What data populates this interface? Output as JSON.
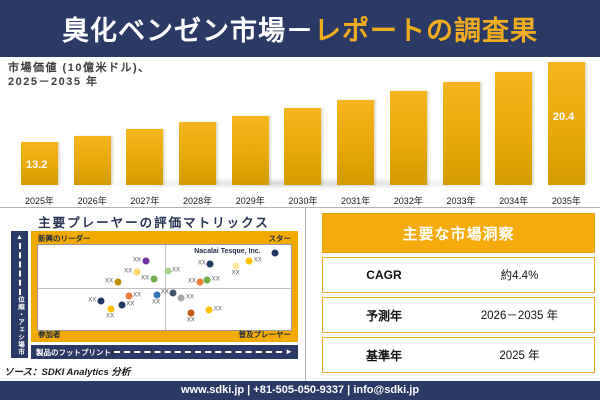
{
  "header": {
    "title_part1": "臭化ベンゼン市場－",
    "title_part2": "レポートの調査果"
  },
  "chart_data": [
    {
      "type": "bar",
      "title": "市場価値 (10億米ドル)、2025－2035 年",
      "title_lines": [
        "市場価値 (10億米ドル)、",
        "2025－2035 年"
      ],
      "categories": [
        "2025年",
        "2026年",
        "2027年",
        "2028年",
        "2029年",
        "2030年",
        "2031年",
        "2032年",
        "2033年",
        "2034年",
        "2035年"
      ],
      "values": [
        13.2,
        13.8,
        14.4,
        15.0,
        15.6,
        16.3,
        17.0,
        17.8,
        18.6,
        19.5,
        20.4
      ],
      "labeled_points": {
        "2025年": "13.2",
        "2035年": "20.4"
      },
      "unit": "10億米ドル",
      "ylim": [
        9.4,
        21
      ],
      "bar_color": "#E7A90A",
      "legend": "none",
      "grid": "off"
    },
    {
      "type": "scatter",
      "title": "主要プレーヤーの評価マトリックス",
      "xlabel": "製品のフットプリント",
      "ylabel": "市場シェア・順位",
      "quadrants": {
        "top_left": "新興のリーダー",
        "top_right": "スター",
        "bottom_left": "参加者",
        "bottom_right": "普及プレーヤー"
      },
      "annotation": "Nacalai Tesque, Inc.",
      "point_label": "XX",
      "points": [
        {
          "x": 42.5,
          "y": 19.0,
          "color": "#7030A0",
          "side": "left"
        },
        {
          "x": 39.0,
          "y": 32.0,
          "color": "#FFD966",
          "side": "left"
        },
        {
          "x": 45.7,
          "y": 40.0,
          "color": "#70AD47",
          "side": "left"
        },
        {
          "x": 31.5,
          "y": 43.5,
          "color": "#BF8F00",
          "side": "left"
        },
        {
          "x": 51.2,
          "y": 30.6,
          "color": "#A9D18E",
          "side": "right"
        },
        {
          "x": 68.1,
          "y": 22.4,
          "color": "#1F3864",
          "side": "left"
        },
        {
          "x": 93.7,
          "y": 9.4,
          "color": "#1F3864",
          "side": "none"
        },
        {
          "x": 78.3,
          "y": 24.7,
          "color": "#FFE699",
          "side": "below"
        },
        {
          "x": 83.5,
          "y": 18.8,
          "color": "#FFC000",
          "side": "right"
        },
        {
          "x": 64.2,
          "y": 43.5,
          "color": "#ED7D31",
          "side": "left"
        },
        {
          "x": 66.9,
          "y": 41.2,
          "color": "#70AD47",
          "side": "right"
        },
        {
          "x": 24.8,
          "y": 65.9,
          "color": "#1F3864",
          "side": "left"
        },
        {
          "x": 35.8,
          "y": 60.0,
          "color": "#ED7D31",
          "side": "right"
        },
        {
          "x": 46.9,
          "y": 58.8,
          "color": "#2E75B6",
          "side": "below"
        },
        {
          "x": 33.1,
          "y": 70.6,
          "color": "#203864",
          "side": "right"
        },
        {
          "x": 28.7,
          "y": 75.3,
          "color": "#FFC000",
          "side": "below"
        },
        {
          "x": 53.5,
          "y": 56.5,
          "color": "#44546A",
          "side": "left"
        },
        {
          "x": 56.7,
          "y": 62.4,
          "color": "#A6A6A6",
          "side": "right"
        },
        {
          "x": 60.6,
          "y": 80.0,
          "color": "#C55A11",
          "side": "below"
        },
        {
          "x": 67.7,
          "y": 76.5,
          "color": "#FFC000",
          "side": "right"
        }
      ]
    },
    {
      "type": "table",
      "title": "主要な市場洞察",
      "rows": [
        {
          "label": "CAGR",
          "value": "約4.4%"
        },
        {
          "label": "予測年",
          "value": "2026－2035 年"
        },
        {
          "label": "基準年",
          "value": "2025 年"
        }
      ]
    }
  ],
  "source": "ソース：SDKI Analytics 分析",
  "footer": "www.sdki.jp | +81-505-050-9337 | info@sdki.jp",
  "colors": {
    "navy": "#2B3966",
    "gold": "#F2A900",
    "title_accent": "#F2AC1D",
    "bar_gradient_top": "#F5B51F",
    "bar_gradient_bottom": "#D29B00"
  }
}
